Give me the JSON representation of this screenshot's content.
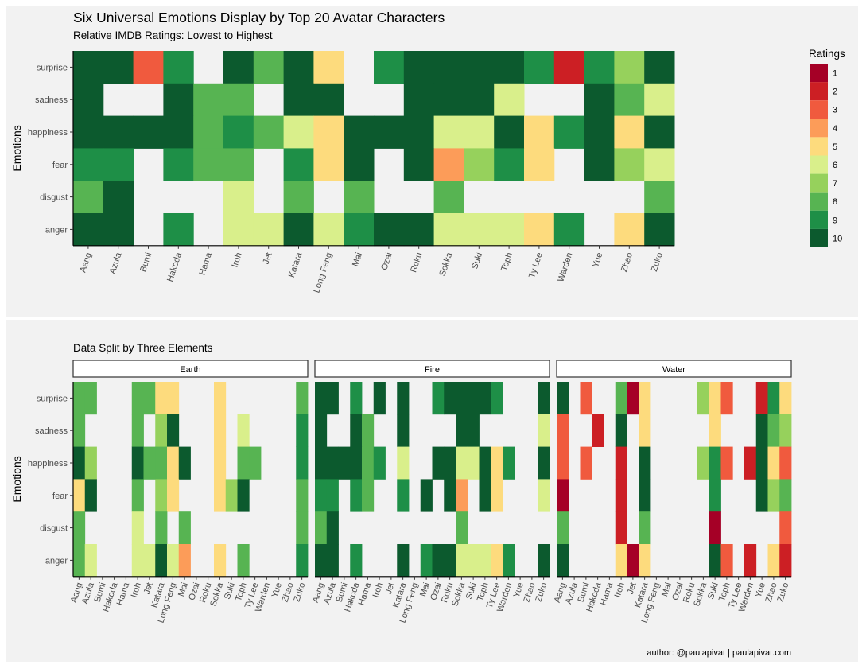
{
  "chart_data": [
    {
      "type": "heatmap",
      "title": "Six Universal Emotions Display by Top 20 Avatar Characters",
      "subtitle": "Relative IMDB Ratings: Lowest to Highest",
      "xlabel": "",
      "ylabel": "Emotions",
      "x": [
        "Aang",
        "Azula",
        "Bumi",
        "Hakoda",
        "Hama",
        "Iroh",
        "Jet",
        "Katara",
        "Long Feng",
        "Mai",
        "Ozai",
        "Roku",
        "Sokka",
        "Suki",
        "Toph",
        "Ty Lee",
        "Warden",
        "Yue",
        "Zhao",
        "Zuko"
      ],
      "y": [
        "surprise",
        "sadness",
        "happiness",
        "fear",
        "disgust",
        "anger"
      ],
      "values": [
        [
          10,
          10,
          3,
          9,
          null,
          10,
          8,
          10,
          5,
          null,
          9,
          10,
          10,
          10,
          10,
          9,
          2,
          9,
          7,
          10
        ],
        [
          10,
          null,
          null,
          10,
          8,
          8,
          null,
          10,
          10,
          null,
          null,
          10,
          10,
          10,
          6,
          null,
          null,
          10,
          8,
          6
        ],
        [
          10,
          10,
          10,
          10,
          8,
          9,
          8,
          6,
          5,
          10,
          10,
          10,
          6,
          6,
          10,
          5,
          9,
          10,
          5,
          10
        ],
        [
          9,
          9,
          null,
          9,
          8,
          8,
          null,
          9,
          5,
          10,
          null,
          10,
          4,
          7,
          9,
          5,
          null,
          10,
          7,
          6
        ],
        [
          8,
          10,
          null,
          null,
          null,
          6,
          null,
          8,
          null,
          8,
          null,
          null,
          8,
          null,
          null,
          null,
          null,
          null,
          null,
          8
        ],
        [
          10,
          10,
          null,
          9,
          null,
          6,
          6,
          10,
          6,
          9,
          10,
          10,
          6,
          6,
          6,
          5,
          9,
          null,
          5,
          10
        ]
      ]
    },
    {
      "type": "heatmap",
      "title": "Data Split by Three Elements",
      "xlabel": "",
      "ylabel": "Emotions",
      "x": [
        "Aang",
        "Azula",
        "Bumi",
        "Hakoda",
        "Hama",
        "Iroh",
        "Jet",
        "Katara",
        "Long Feng",
        "Mai",
        "Ozai",
        "Roku",
        "Sokka",
        "Suki",
        "Toph",
        "Ty Lee",
        "Warden",
        "Yue",
        "Zhao",
        "Zuko"
      ],
      "y": [
        "surprise",
        "sadness",
        "happiness",
        "fear",
        "disgust",
        "anger"
      ],
      "facets": [
        {
          "name": "Earth",
          "values": [
            [
              8,
              8,
              null,
              null,
              null,
              8,
              8,
              5,
              5,
              null,
              null,
              null,
              5,
              null,
              null,
              null,
              null,
              null,
              null,
              8
            ],
            [
              8,
              null,
              null,
              null,
              null,
              8,
              null,
              7,
              10,
              null,
              null,
              null,
              5,
              null,
              6,
              null,
              null,
              null,
              null,
              9
            ],
            [
              10,
              7,
              null,
              null,
              null,
              10,
              8,
              8,
              5,
              10,
              null,
              null,
              5,
              null,
              8,
              8,
              null,
              null,
              null,
              9
            ],
            [
              5,
              10,
              null,
              null,
              null,
              8,
              null,
              7,
              5,
              null,
              null,
              null,
              5,
              7,
              10,
              null,
              null,
              null,
              null,
              8
            ],
            [
              8,
              null,
              null,
              null,
              null,
              6,
              null,
              8,
              null,
              8,
              null,
              null,
              null,
              null,
              null,
              null,
              null,
              null,
              null,
              8
            ],
            [
              8,
              6,
              null,
              null,
              null,
              6,
              6,
              10,
              6,
              4,
              null,
              null,
              5,
              null,
              8,
              null,
              null,
              null,
              null,
              9
            ]
          ]
        },
        {
          "name": "Fire",
          "values": [
            [
              10,
              10,
              null,
              9,
              null,
              10,
              null,
              10,
              null,
              null,
              9,
              10,
              10,
              10,
              10,
              9,
              null,
              null,
              null,
              10
            ],
            [
              10,
              null,
              null,
              10,
              8,
              null,
              null,
              10,
              null,
              null,
              null,
              null,
              10,
              10,
              null,
              null,
              null,
              null,
              null,
              6
            ],
            [
              10,
              10,
              10,
              10,
              8,
              9,
              null,
              6,
              null,
              null,
              10,
              10,
              6,
              6,
              10,
              5,
              9,
              null,
              null,
              10
            ],
            [
              9,
              9,
              null,
              9,
              8,
              null,
              null,
              9,
              null,
              10,
              null,
              10,
              4,
              null,
              10,
              5,
              null,
              null,
              null,
              6
            ],
            [
              8,
              10,
              null,
              null,
              null,
              null,
              null,
              null,
              null,
              null,
              null,
              null,
              8,
              null,
              null,
              null,
              null,
              null,
              null,
              null
            ],
            [
              10,
              10,
              null,
              9,
              null,
              null,
              null,
              10,
              null,
              9,
              10,
              10,
              6,
              6,
              6,
              5,
              9,
              null,
              null,
              10
            ]
          ]
        },
        {
          "name": "Water",
          "values": [
            [
              10,
              null,
              3,
              null,
              null,
              8,
              1,
              5,
              null,
              null,
              null,
              null,
              7,
              5,
              3,
              null,
              null,
              2,
              9,
              5
            ],
            [
              3,
              null,
              null,
              2,
              null,
              10,
              null,
              5,
              null,
              null,
              null,
              null,
              null,
              5,
              null,
              null,
              null,
              10,
              8,
              7
            ],
            [
              3,
              null,
              3,
              null,
              null,
              2,
              null,
              10,
              null,
              null,
              null,
              null,
              7,
              9,
              3,
              null,
              2,
              10,
              5,
              3
            ],
            [
              1,
              null,
              null,
              null,
              null,
              2,
              null,
              10,
              null,
              null,
              null,
              null,
              null,
              9,
              null,
              null,
              null,
              10,
              7,
              8
            ],
            [
              8,
              null,
              null,
              null,
              null,
              2,
              null,
              8,
              null,
              null,
              null,
              null,
              null,
              1,
              null,
              null,
              null,
              null,
              null,
              3
            ],
            [
              10,
              null,
              null,
              null,
              null,
              5,
              1,
              5,
              null,
              null,
              null,
              null,
              null,
              10,
              3,
              null,
              2,
              null,
              5,
              2
            ]
          ]
        }
      ]
    }
  ],
  "legend": {
    "title": "Ratings",
    "levels": [
      "1",
      "2",
      "3",
      "4",
      "5",
      "6",
      "7",
      "8",
      "9",
      "10"
    ],
    "colors": [
      "#a50026",
      "#cc1f24",
      "#f05a3e",
      "#fc9c59",
      "#fddb7d",
      "#d9ef8b",
      "#96d15c",
      "#57b452",
      "#1e8f47",
      "#0c5a2e"
    ]
  },
  "caption": "author: @paulapivat | paulapivat.com",
  "colors": {
    "panel": "#f2f2f2",
    "frame": "#eaeaea",
    "text": "#000000",
    "axis_text": "#4d4d4d"
  }
}
